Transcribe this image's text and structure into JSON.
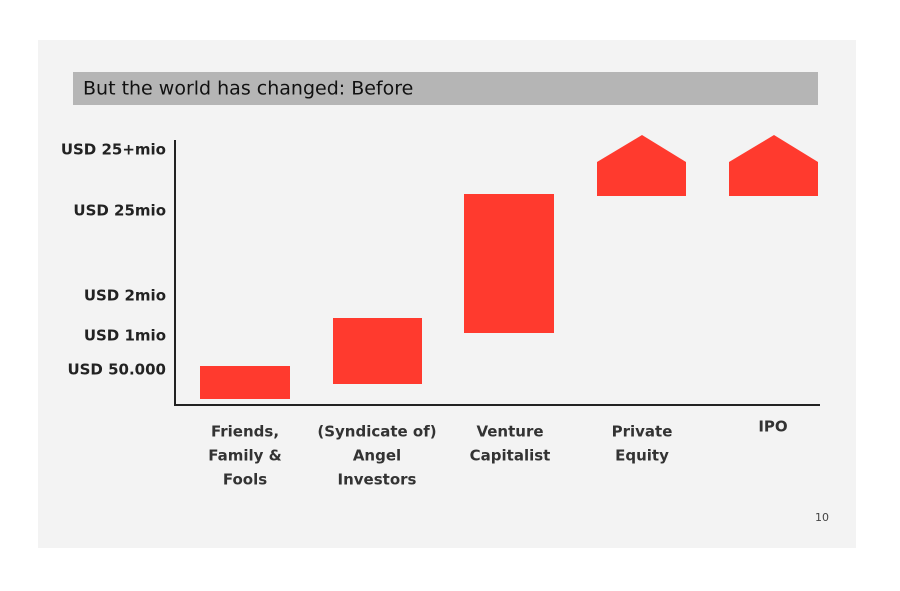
{
  "slide": {
    "title": "But the world has changed: Before",
    "y_axis_labels": [
      "USD 25+mio",
      "USD 25mio",
      "USD 2mio",
      "USD 1mio",
      "USD 50.000"
    ],
    "categories": [
      [
        "Friends,",
        "Family &",
        "Fools"
      ],
      [
        "(Syndicate of)",
        "Angel",
        "Investors"
      ],
      [
        "Venture",
        "Capitalist"
      ],
      [
        "Private",
        "Equity"
      ],
      [
        "IPO"
      ]
    ],
    "page_number": "10"
  }
}
